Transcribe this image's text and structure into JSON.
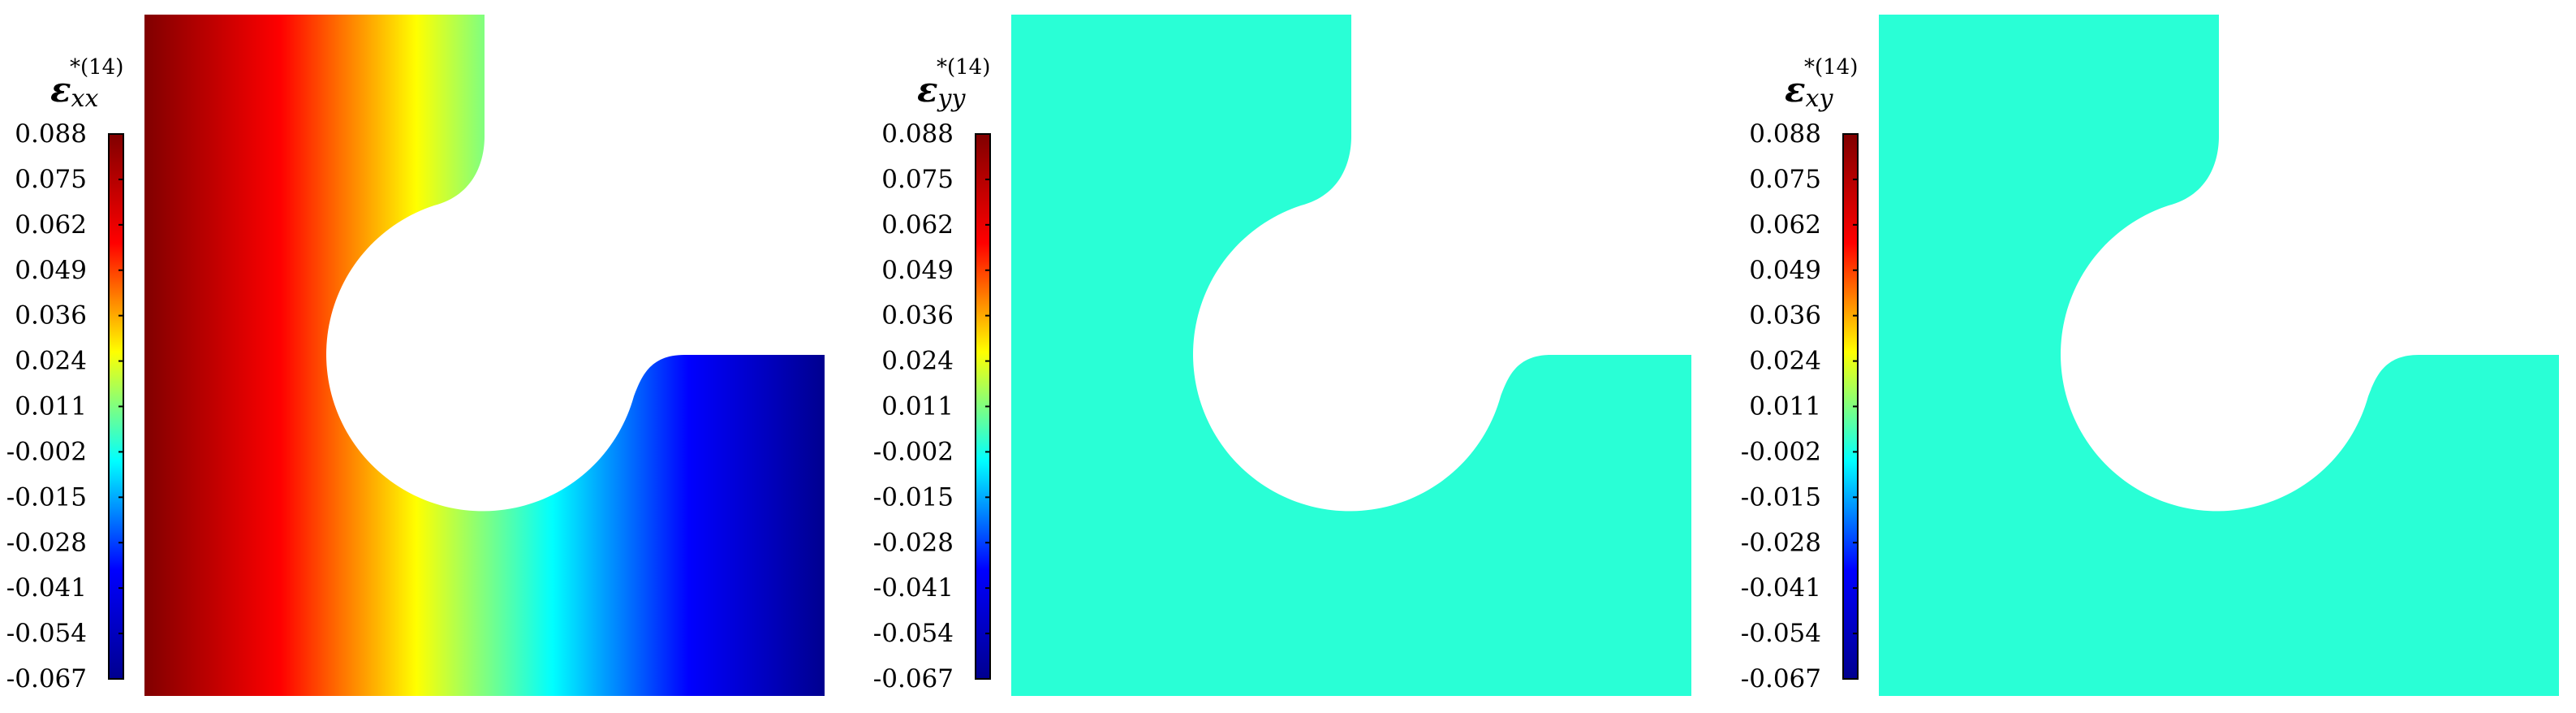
{
  "chart_data": [
    {
      "type": "heatmap",
      "title_symbol": "ε",
      "title_sub": "xx",
      "title_sup": "*(14)",
      "colorbar": {
        "range": [
          -0.067,
          0.088
        ],
        "ticks": [
          "0.088",
          "0.075",
          "0.062",
          "0.049",
          "0.036",
          "0.024",
          "0.011",
          "-0.002",
          "-0.015",
          "-0.028",
          "-0.041",
          "-0.054",
          "-0.067"
        ],
        "colormap": "jet"
      },
      "field": {
        "kind": "linear-gradient-x",
        "value_left": 0.088,
        "value_right": -0.067
      }
    },
    {
      "type": "heatmap",
      "title_symbol": "ε",
      "title_sub": "yy",
      "title_sup": "*(14)",
      "colorbar": {
        "range": [
          -0.067,
          0.088
        ],
        "ticks": [
          "0.088",
          "0.075",
          "0.062",
          "0.049",
          "0.036",
          "0.024",
          "0.011",
          "-0.002",
          "-0.015",
          "-0.028",
          "-0.041",
          "-0.054",
          "-0.067"
        ],
        "colormap": "jet"
      },
      "field": {
        "kind": "uniform",
        "value": 0
      }
    },
    {
      "type": "heatmap",
      "title_symbol": "ε",
      "title_sub": "xy",
      "title_sup": "*(14)",
      "colorbar": {
        "range": [
          -0.067,
          0.088
        ],
        "ticks": [
          "0.088",
          "0.075",
          "0.062",
          "0.049",
          "0.036",
          "0.024",
          "0.011",
          "-0.002",
          "-0.015",
          "-0.028",
          "-0.041",
          "-0.054",
          "-0.067"
        ],
        "colormap": "jet"
      },
      "field": {
        "kind": "uniform",
        "value": 0
      }
    }
  ],
  "colors": {
    "jet_stops": [
      "#00008f",
      "#0000ff",
      "#00ffff",
      "#ffff00",
      "#ff0000",
      "#800000"
    ]
  }
}
